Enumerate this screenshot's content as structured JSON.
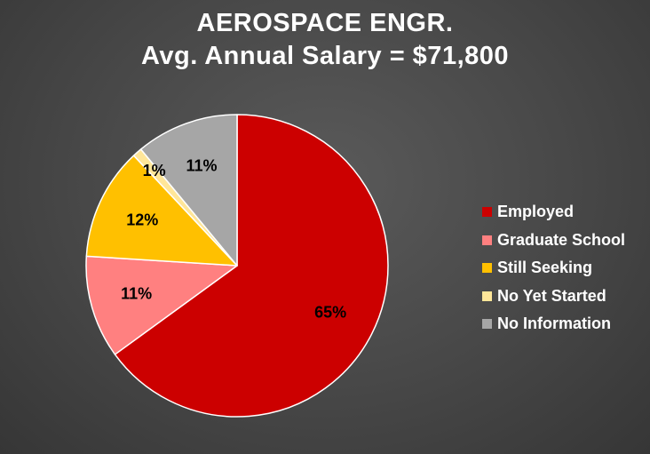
{
  "chart_data": {
    "type": "pie",
    "title_line1": "AEROSPACE ENGR.",
    "title_line2": "Avg. Annual Salary = $71,800",
    "slices": [
      {
        "name": "Employed",
        "value": 65,
        "label": "65%",
        "color": "#cc0000"
      },
      {
        "name": "Graduate School",
        "value": 11,
        "label": "11%",
        "color": "#ff8080"
      },
      {
        "name": "Still Seeking",
        "value": 12,
        "label": "12%",
        "color": "#ffc000"
      },
      {
        "name": "No Yet Started",
        "value": 1,
        "label": "1%",
        "color": "#ffe699"
      },
      {
        "name": "No Information",
        "value": 11,
        "label": "11%",
        "color": "#a6a6a6"
      }
    ],
    "legend_position": "right"
  }
}
